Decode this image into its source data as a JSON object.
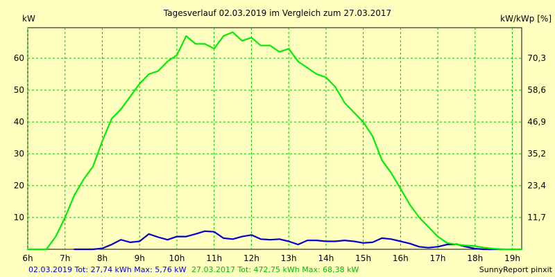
{
  "chart_data": {
    "type": "line",
    "title": "Tagesverlauf 02.03.2019 im Vergleich zum 27.03.2017",
    "ylabel_left": "kW",
    "ylabel_right": "kW/kWp [%]",
    "footer_credit": "SunnyReport pinxit",
    "x_ticks": [
      "6h",
      "7h",
      "8h",
      "9h",
      "10h",
      "11h",
      "12h",
      "13h",
      "14h",
      "15h",
      "16h",
      "17h",
      "18h",
      "19h"
    ],
    "y_left_ticks": [
      "10",
      "20",
      "30",
      "40",
      "50",
      "60"
    ],
    "y_right_ticks": [
      "11,7",
      "23,4",
      "35,2",
      "46,9",
      "58,6",
      "70,3"
    ],
    "x_unit": "hour",
    "xlim": [
      6,
      19.25
    ],
    "ylim": [
      0,
      69.6
    ],
    "grid": true,
    "legend_placement": "bottom-left",
    "series": [
      {
        "name": "02.03.2019",
        "summary": "02.03.2019 Tot: 27,74 kWh Max: 5,76 kW",
        "color": "#0000cc",
        "x": [
          7.25,
          7.5,
          7.75,
          8.0,
          8.25,
          8.5,
          8.75,
          9.0,
          9.25,
          9.5,
          9.75,
          10.0,
          10.25,
          10.5,
          10.75,
          11.0,
          11.25,
          11.5,
          11.75,
          12.0,
          12.25,
          12.5,
          12.75,
          13.0,
          13.25,
          13.5,
          13.75,
          14.0,
          14.25,
          14.5,
          14.75,
          15.0,
          15.25,
          15.5,
          15.75,
          16.0,
          16.25,
          16.5,
          16.75,
          17.0,
          17.25,
          17.5,
          17.75,
          18.0,
          18.25,
          18.5,
          18.75
        ],
        "values": [
          0,
          0,
          0,
          0.3,
          1.5,
          3,
          2.2,
          2.5,
          4.8,
          3.8,
          3,
          4,
          4,
          4.8,
          5.7,
          5.5,
          3.5,
          3.2,
          4,
          4.5,
          3.2,
          3,
          3.2,
          2.5,
          1.5,
          2.8,
          2.8,
          2.5,
          2.5,
          2.8,
          2.5,
          2,
          2.2,
          3.5,
          3.2,
          2.5,
          1.8,
          0.8,
          0.5,
          0.8,
          1.5,
          1.6,
          0.8,
          0.2,
          0,
          0,
          0
        ]
      },
      {
        "name": "27.03.2017",
        "summary": "27.03.2017 Tot: 472,75 kWh Max: 68,38 kW",
        "color": "#00ee00",
        "x": [
          6.0,
          6.25,
          6.5,
          6.75,
          7.0,
          7.25,
          7.5,
          7.75,
          8.0,
          8.25,
          8.5,
          8.75,
          9.0,
          9.25,
          9.5,
          9.75,
          10.0,
          10.25,
          10.5,
          10.75,
          11.0,
          11.25,
          11.5,
          11.75,
          12.0,
          12.25,
          12.5,
          12.75,
          13.0,
          13.25,
          13.5,
          13.75,
          14.0,
          14.25,
          14.5,
          14.75,
          15.0,
          15.25,
          15.5,
          15.75,
          16.0,
          16.25,
          16.5,
          16.75,
          17.0,
          17.25,
          17.5,
          17.75,
          18.0,
          18.25,
          18.5,
          18.75,
          19.0,
          19.25
        ],
        "values": [
          0,
          0,
          0,
          4,
          10,
          17,
          22,
          26,
          34,
          41,
          44,
          48,
          52,
          55,
          56,
          59,
          61,
          67,
          64.5,
          64.5,
          63,
          67,
          68.2,
          65.5,
          66.5,
          64,
          64,
          62,
          63,
          59,
          57,
          55,
          54,
          51,
          46,
          43,
          40,
          35.5,
          28,
          24,
          19,
          14,
          10,
          7,
          4,
          2,
          1.5,
          1.2,
          1,
          0.5,
          0.2,
          0,
          0,
          0
        ]
      }
    ]
  }
}
